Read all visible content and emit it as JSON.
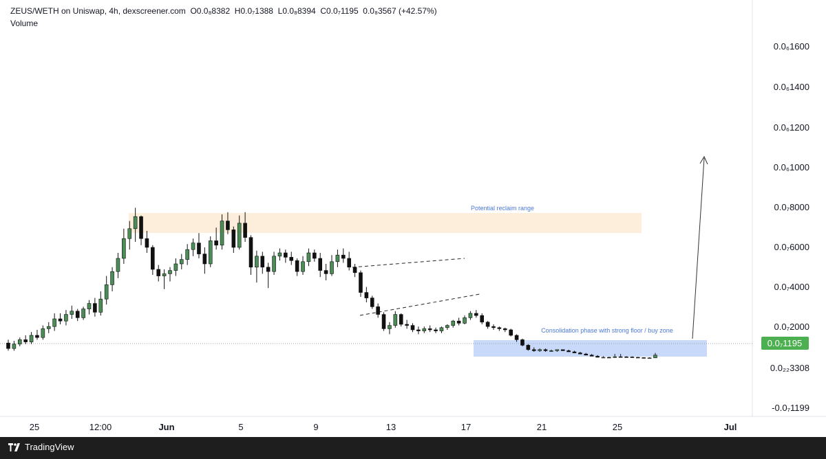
{
  "header": {
    "symbol": "ZEUS/WETH on Uniswap, 4h, dexscreener.com",
    "open": "O0.0₈8382",
    "high": "H0.0₇1388",
    "low": "L0.0₈8394",
    "close": "C0.0₇1195",
    "change": "0.0₈3567 (+42.57%)",
    "volume_label": "Volume"
  },
  "brand": {
    "name": "TradingView"
  },
  "colors": {
    "up": "#4c8c57",
    "down": "#111111",
    "price_tag": "#4caf50",
    "reclaim_zone": "#fdeedb",
    "buy_zone": "#c9d9f9",
    "annotation_text": "#4a78d6"
  },
  "price_tag": {
    "label": "0.0₇1195"
  },
  "annotations": {
    "reclaim": "Potential reclaim range",
    "consolidation": "Consolidation phase with strong floor / buy zone"
  },
  "chart_data": {
    "type": "candlestick",
    "timeframe": "4h",
    "y_axis_labels": [
      "0.0₆1600",
      "0.0₆1400",
      "0.0₆1200",
      "0.0₆1000",
      "0.0₇8000",
      "0.0₇6000",
      "0.0₇4000",
      "0.0₇2000",
      "0.0₂₂3308",
      "-0.0₇1199"
    ],
    "x_axis_labels": [
      "25",
      "12:00",
      "Jun",
      "5",
      "9",
      "13",
      "17",
      "21",
      "25",
      "Jul"
    ],
    "last_close": "0.0₇1195",
    "last_change_pct": 42.57,
    "ohlc_approx_e8": [
      {
        "o": 2.3,
        "h": 2.6,
        "l": 1.6,
        "c": 1.8
      },
      {
        "o": 1.8,
        "h": 2.5,
        "l": 1.6,
        "c": 2.2
      },
      {
        "o": 2.2,
        "h": 2.8,
        "l": 2.0,
        "c": 2.6
      },
      {
        "o": 2.6,
        "h": 3.0,
        "l": 2.2,
        "c": 2.4
      },
      {
        "o": 2.4,
        "h": 3.3,
        "l": 2.2,
        "c": 3.0
      },
      {
        "o": 3.0,
        "h": 3.5,
        "l": 2.6,
        "c": 2.8
      },
      {
        "o": 2.8,
        "h": 3.9,
        "l": 2.6,
        "c": 3.6
      },
      {
        "o": 3.6,
        "h": 4.2,
        "l": 3.2,
        "c": 3.8
      },
      {
        "o": 3.8,
        "h": 5.0,
        "l": 3.4,
        "c": 4.5
      },
      {
        "o": 4.5,
        "h": 5.0,
        "l": 4.0,
        "c": 4.3
      },
      {
        "o": 4.3,
        "h": 5.3,
        "l": 3.9,
        "c": 4.9
      },
      {
        "o": 4.9,
        "h": 5.7,
        "l": 4.5,
        "c": 5.2
      },
      {
        "o": 5.2,
        "h": 5.4,
        "l": 4.3,
        "c": 4.6
      },
      {
        "o": 4.6,
        "h": 5.6,
        "l": 4.4,
        "c": 5.4
      },
      {
        "o": 5.4,
        "h": 6.2,
        "l": 4.9,
        "c": 5.9
      },
      {
        "o": 5.9,
        "h": 6.4,
        "l": 4.7,
        "c": 5.1
      },
      {
        "o": 5.1,
        "h": 7.0,
        "l": 4.8,
        "c": 6.3
      },
      {
        "o": 6.3,
        "h": 8.4,
        "l": 5.8,
        "c": 7.6
      },
      {
        "o": 7.6,
        "h": 9.2,
        "l": 7.0,
        "c": 8.8
      },
      {
        "o": 8.8,
        "h": 10.5,
        "l": 8.2,
        "c": 10.0
      },
      {
        "o": 10.0,
        "h": 12.7,
        "l": 9.5,
        "c": 11.8
      },
      {
        "o": 11.8,
        "h": 13.4,
        "l": 10.8,
        "c": 12.7
      },
      {
        "o": 12.7,
        "h": 14.6,
        "l": 11.5,
        "c": 13.8
      },
      {
        "o": 13.8,
        "h": 13.9,
        "l": 11.2,
        "c": 11.8
      },
      {
        "o": 11.8,
        "h": 12.5,
        "l": 10.5,
        "c": 11.0
      },
      {
        "o": 11.0,
        "h": 11.2,
        "l": 8.5,
        "c": 9.0
      },
      {
        "o": 9.0,
        "h": 9.4,
        "l": 7.9,
        "c": 8.4
      },
      {
        "o": 8.4,
        "h": 9.0,
        "l": 7.2,
        "c": 8.6
      },
      {
        "o": 8.6,
        "h": 9.2,
        "l": 7.9,
        "c": 8.9
      },
      {
        "o": 8.9,
        "h": 10.0,
        "l": 8.4,
        "c": 9.5
      },
      {
        "o": 9.5,
        "h": 10.4,
        "l": 9.0,
        "c": 9.9
      },
      {
        "o": 9.9,
        "h": 11.3,
        "l": 9.4,
        "c": 10.8
      },
      {
        "o": 10.8,
        "h": 11.8,
        "l": 10.2,
        "c": 11.4
      },
      {
        "o": 11.4,
        "h": 12.3,
        "l": 10.0,
        "c": 10.4
      },
      {
        "o": 10.4,
        "h": 11.0,
        "l": 8.6,
        "c": 9.5
      },
      {
        "o": 9.5,
        "h": 12.0,
        "l": 9.2,
        "c": 11.6
      },
      {
        "o": 11.6,
        "h": 12.8,
        "l": 10.8,
        "c": 11.2
      },
      {
        "o": 11.2,
        "h": 14.0,
        "l": 10.8,
        "c": 13.4
      },
      {
        "o": 13.4,
        "h": 14.2,
        "l": 12.2,
        "c": 12.6
      },
      {
        "o": 12.6,
        "h": 12.9,
        "l": 10.5,
        "c": 11.0
      },
      {
        "o": 11.0,
        "h": 13.9,
        "l": 10.8,
        "c": 13.2
      },
      {
        "o": 13.2,
        "h": 14.2,
        "l": 11.5,
        "c": 11.9
      },
      {
        "o": 11.9,
        "h": 12.1,
        "l": 8.5,
        "c": 9.2
      },
      {
        "o": 9.2,
        "h": 10.7,
        "l": 7.8,
        "c": 10.2
      },
      {
        "o": 10.2,
        "h": 10.6,
        "l": 8.6,
        "c": 9.2
      },
      {
        "o": 9.2,
        "h": 9.6,
        "l": 7.3,
        "c": 8.8
      },
      {
        "o": 8.8,
        "h": 10.6,
        "l": 8.5,
        "c": 10.2
      },
      {
        "o": 10.2,
        "h": 10.9,
        "l": 9.8,
        "c": 10.5
      },
      {
        "o": 10.5,
        "h": 10.8,
        "l": 9.6,
        "c": 10.1
      },
      {
        "o": 10.1,
        "h": 10.6,
        "l": 9.4,
        "c": 9.8
      },
      {
        "o": 9.8,
        "h": 10.0,
        "l": 8.4,
        "c": 8.8
      },
      {
        "o": 8.8,
        "h": 10.2,
        "l": 8.5,
        "c": 9.7
      },
      {
        "o": 9.7,
        "h": 10.9,
        "l": 9.3,
        "c": 10.5
      },
      {
        "o": 10.5,
        "h": 10.8,
        "l": 9.7,
        "c": 10.0
      },
      {
        "o": 10.0,
        "h": 10.5,
        "l": 8.3,
        "c": 8.9
      },
      {
        "o": 8.9,
        "h": 9.5,
        "l": 8.0,
        "c": 8.6
      },
      {
        "o": 8.6,
        "h": 10.3,
        "l": 8.4,
        "c": 9.7
      },
      {
        "o": 9.7,
        "h": 10.8,
        "l": 9.2,
        "c": 10.3
      },
      {
        "o": 10.3,
        "h": 10.9,
        "l": 9.6,
        "c": 10.0
      },
      {
        "o": 10.0,
        "h": 10.6,
        "l": 8.9,
        "c": 9.2
      },
      {
        "o": 9.2,
        "h": 9.5,
        "l": 8.3,
        "c": 8.7
      },
      {
        "o": 8.7,
        "h": 8.9,
        "l": 6.5,
        "c": 6.9
      },
      {
        "o": 6.9,
        "h": 7.4,
        "l": 6.0,
        "c": 6.4
      },
      {
        "o": 6.4,
        "h": 6.6,
        "l": 5.4,
        "c": 5.6
      },
      {
        "o": 5.6,
        "h": 5.9,
        "l": 4.6,
        "c": 4.9
      },
      {
        "o": 4.9,
        "h": 5.1,
        "l": 3.4,
        "c": 3.6
      },
      {
        "o": 3.6,
        "h": 4.2,
        "l": 3.1,
        "c": 3.9
      },
      {
        "o": 3.9,
        "h": 5.2,
        "l": 3.7,
        "c": 4.9
      },
      {
        "o": 4.9,
        "h": 5.0,
        "l": 3.8,
        "c": 4.0
      },
      {
        "o": 4.0,
        "h": 4.4,
        "l": 3.6,
        "c": 3.9
      },
      {
        "o": 3.9,
        "h": 4.1,
        "l": 3.3,
        "c": 3.5
      },
      {
        "o": 3.5,
        "h": 3.8,
        "l": 3.1,
        "c": 3.4
      },
      {
        "o": 3.4,
        "h": 3.8,
        "l": 3.2,
        "c": 3.6
      },
      {
        "o": 3.6,
        "h": 3.9,
        "l": 3.3,
        "c": 3.5
      },
      {
        "o": 3.5,
        "h": 3.7,
        "l": 3.2,
        "c": 3.4
      },
      {
        "o": 3.4,
        "h": 3.8,
        "l": 3.2,
        "c": 3.7
      },
      {
        "o": 3.7,
        "h": 4.0,
        "l": 3.5,
        "c": 3.9
      },
      {
        "o": 3.9,
        "h": 4.4,
        "l": 3.7,
        "c": 4.3
      },
      {
        "o": 4.3,
        "h": 4.6,
        "l": 3.9,
        "c": 4.1
      },
      {
        "o": 4.1,
        "h": 4.8,
        "l": 4.0,
        "c": 4.6
      },
      {
        "o": 4.6,
        "h": 5.2,
        "l": 4.4,
        "c": 5.0
      },
      {
        "o": 5.0,
        "h": 5.3,
        "l": 4.6,
        "c": 4.8
      },
      {
        "o": 4.8,
        "h": 5.0,
        "l": 4.0,
        "c": 4.2
      },
      {
        "o": 4.2,
        "h": 4.3,
        "l": 3.6,
        "c": 3.8
      },
      {
        "o": 3.8,
        "h": 4.0,
        "l": 3.5,
        "c": 3.7
      },
      {
        "o": 3.7,
        "h": 3.8,
        "l": 3.4,
        "c": 3.6
      },
      {
        "o": 3.6,
        "h": 3.7,
        "l": 3.3,
        "c": 3.5
      },
      {
        "o": 3.5,
        "h": 3.6,
        "l": 2.9,
        "c": 3.0
      },
      {
        "o": 3.0,
        "h": 3.1,
        "l": 2.4,
        "c": 2.6
      },
      {
        "o": 2.6,
        "h": 2.7,
        "l": 2.0,
        "c": 2.1
      },
      {
        "o": 2.1,
        "h": 2.2,
        "l": 1.6,
        "c": 1.7
      },
      {
        "o": 1.7,
        "h": 1.9,
        "l": 1.5,
        "c": 1.6
      },
      {
        "o": 1.6,
        "h": 1.8,
        "l": 1.5,
        "c": 1.7
      },
      {
        "o": 1.7,
        "h": 1.8,
        "l": 1.5,
        "c": 1.6
      },
      {
        "o": 1.6,
        "h": 1.7,
        "l": 1.5,
        "c": 1.6
      },
      {
        "o": 1.6,
        "h": 1.7,
        "l": 1.5,
        "c": 1.7
      },
      {
        "o": 1.7,
        "h": 1.7,
        "l": 1.6,
        "c": 1.6
      },
      {
        "o": 1.6,
        "h": 1.7,
        "l": 1.5,
        "c": 1.5
      },
      {
        "o": 1.5,
        "h": 1.6,
        "l": 1.4,
        "c": 1.4
      },
      {
        "o": 1.4,
        "h": 1.5,
        "l": 1.3,
        "c": 1.3
      },
      {
        "o": 1.3,
        "h": 1.4,
        "l": 1.2,
        "c": 1.2
      },
      {
        "o": 1.2,
        "h": 1.3,
        "l": 1.1,
        "c": 1.1
      },
      {
        "o": 1.1,
        "h": 1.2,
        "l": 1.0,
        "c": 1.0
      },
      {
        "o": 1.0,
        "h": 1.1,
        "l": 0.95,
        "c": 1.0
      },
      {
        "o": 1.0,
        "h": 1.05,
        "l": 0.95,
        "c": 0.98
      },
      {
        "o": 0.98,
        "h": 1.3,
        "l": 0.95,
        "c": 1.05
      },
      {
        "o": 1.05,
        "h": 1.3,
        "l": 1.0,
        "c": 1.04
      },
      {
        "o": 1.04,
        "h": 1.1,
        "l": 1.0,
        "c": 1.03
      },
      {
        "o": 1.03,
        "h": 1.08,
        "l": 0.98,
        "c": 1.0
      },
      {
        "o": 1.0,
        "h": 1.04,
        "l": 0.94,
        "c": 0.97
      },
      {
        "o": 0.97,
        "h": 1.0,
        "l": 0.9,
        "c": 0.93
      },
      {
        "o": 0.93,
        "h": 1.0,
        "l": 0.9,
        "c": 0.95
      },
      {
        "o": 0.95,
        "h": 1.4,
        "l": 0.93,
        "c": 1.2
      }
    ]
  }
}
